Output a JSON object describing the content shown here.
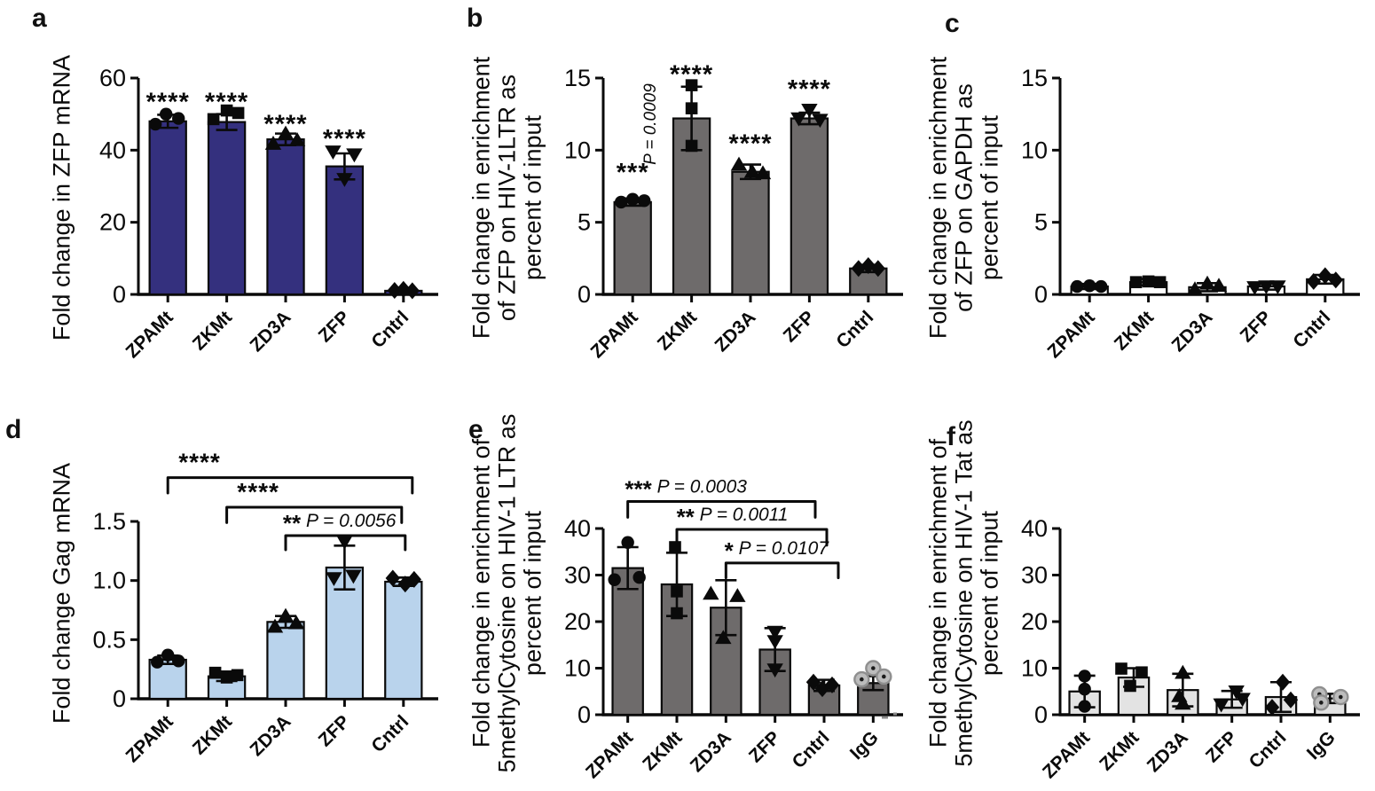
{
  "chart_data": [
    {
      "panel": "a",
      "type": "bar",
      "title": "",
      "ylabel": "Fold change in ZFP mRNA",
      "categories": [
        "ZPAMt",
        "ZKMt",
        "ZD3A",
        "ZFP",
        "Cntrl"
      ],
      "markers": [
        "circle",
        "square",
        "triangle-up",
        "triangle-down",
        "diamond"
      ],
      "values": [
        48,
        47.8,
        43,
        35.5,
        1
      ],
      "errors": [
        1.8,
        2.2,
        1.6,
        3.6,
        0.3
      ],
      "points": [
        [
          {
            "dx": -14,
            "v": 47.2
          },
          {
            "dx": -2,
            "v": 50
          },
          {
            "dx": 12,
            "v": 48.8
          }
        ],
        [
          {
            "dx": -15,
            "v": 48.6
          },
          {
            "dx": 0,
            "v": 51
          },
          {
            "dx": 13,
            "v": 50.3
          }
        ],
        [
          {
            "dx": -14,
            "v": 41.8
          },
          {
            "dx": 0,
            "v": 44.6
          },
          {
            "dx": 13,
            "v": 42.8
          }
        ],
        [
          {
            "dx": -13,
            "v": 39.6
          },
          {
            "dx": 11,
            "v": 38.8
          },
          {
            "dx": 0,
            "v": 32
          }
        ],
        [
          {
            "dx": -10,
            "v": 1.1
          },
          {
            "dx": 0,
            "v": 1.4
          },
          {
            "dx": 10,
            "v": 1
          }
        ]
      ],
      "sig": [
        {
          "text": "****",
          "v": 54
        },
        {
          "text": "****",
          "v": 54
        },
        {
          "text": "****",
          "v": 47.8
        },
        {
          "text": "****",
          "v": 43.8
        },
        null
      ],
      "brackets": [],
      "ylim": [
        0,
        60
      ],
      "yticks": [
        {
          "v": 0,
          "label": "0"
        },
        {
          "v": 20,
          "label": "20"
        },
        {
          "v": 40,
          "label": "40"
        },
        {
          "v": 60,
          "label": "60"
        }
      ],
      "bar_color": "#34307E",
      "bar_edge": "#0a0a0a"
    },
    {
      "panel": "b",
      "type": "bar",
      "title": "",
      "ylabel": "Fold change in enrichment\nof ZFP on HIV-1LTR as\npercent of input",
      "categories": [
        "ZPAMt",
        "ZKMt",
        "ZD3A",
        "ZFP",
        "Cntrl"
      ],
      "markers": [
        "circle",
        "square",
        "triangle-up",
        "triangle-down",
        "diamond"
      ],
      "values": [
        6.4,
        12.2,
        8.5,
        12.2,
        1.8
      ],
      "errors": [
        0.25,
        2.2,
        0.5,
        0.4,
        0.25
      ],
      "points": [
        [
          {
            "dx": -13,
            "v": 6.4
          },
          {
            "dx": 0,
            "v": 6.6
          },
          {
            "dx": 13,
            "v": 6.5
          }
        ],
        [
          {
            "dx": 0,
            "v": 14.5
          },
          {
            "dx": 0,
            "v": 12.9
          },
          {
            "dx": 0,
            "v": 10.3
          }
        ],
        [
          {
            "dx": -13,
            "v": 9
          },
          {
            "dx": 2,
            "v": 8.5
          },
          {
            "dx": 14,
            "v": 8.4
          }
        ],
        [
          {
            "dx": -12,
            "v": 12.2
          },
          {
            "dx": 0,
            "v": 12.8
          },
          {
            "dx": 12,
            "v": 12.1
          }
        ],
        [
          {
            "dx": -11,
            "v": 1.8
          },
          {
            "dx": 0,
            "v": 2
          },
          {
            "dx": 11,
            "v": 1.8
          }
        ]
      ],
      "sig": [
        {
          "text": "***",
          "v": 8.6
        },
        {
          "text": "****",
          "v": 15.4
        },
        {
          "text": "****",
          "v": 10.6
        },
        {
          "text": "****",
          "v": 14.4
        },
        null
      ],
      "rotated_note": {
        "cat": 0,
        "dx": 26,
        "v": 11.8,
        "text": "P = 0.0009"
      },
      "brackets": [],
      "ylim": [
        0,
        15
      ],
      "yticks": [
        {
          "v": 0,
          "label": "0"
        },
        {
          "v": 5,
          "label": "5"
        },
        {
          "v": 10,
          "label": "10"
        },
        {
          "v": 15,
          "label": "15"
        }
      ],
      "bar_color": "#6E6B6B",
      "bar_edge": "#0a0a0a"
    },
    {
      "panel": "c",
      "type": "bar",
      "title": "",
      "ylabel": "Fold change in enrichment\nof ZFP on GAPDH as\npercent of input",
      "categories": [
        "ZPAMt",
        "ZKMt",
        "ZD3A",
        "ZFP",
        "Cntrl"
      ],
      "markers": [
        "circle",
        "square",
        "triangle-up",
        "triangle-down",
        "diamond"
      ],
      "values": [
        0.55,
        0.85,
        0.5,
        0.55,
        1.05
      ],
      "errors": [
        0.18,
        0.22,
        0.28,
        0.22,
        0.3
      ],
      "points": [
        [
          {
            "dx": -14,
            "v": 0.55
          },
          {
            "dx": 0,
            "v": 0.6
          },
          {
            "dx": 13,
            "v": 0.55
          }
        ],
        [
          {
            "dx": -14,
            "v": 0.85
          },
          {
            "dx": 0,
            "v": 0.9
          },
          {
            "dx": 13,
            "v": 0.85
          }
        ],
        [
          {
            "dx": -14,
            "v": 0.35
          },
          {
            "dx": 0,
            "v": 0.75
          },
          {
            "dx": 13,
            "v": 0.6
          }
        ],
        [
          {
            "dx": -13,
            "v": 0.5
          },
          {
            "dx": 0,
            "v": 0.55
          },
          {
            "dx": 13,
            "v": 0.55
          }
        ],
        [
          {
            "dx": -13,
            "v": 0.9
          },
          {
            "dx": 0,
            "v": 1.3
          },
          {
            "dx": 12,
            "v": 1
          }
        ]
      ],
      "sig": [
        null,
        null,
        null,
        null,
        null
      ],
      "brackets": [],
      "ylim": [
        0,
        15
      ],
      "yticks": [
        {
          "v": 0,
          "label": "0"
        },
        {
          "v": 5,
          "label": "5"
        },
        {
          "v": 10,
          "label": "10"
        },
        {
          "v": 15,
          "label": "15"
        }
      ],
      "bar_color": "#FFFFFF",
      "bar_edge": "#0a0a0a"
    },
    {
      "panel": "d",
      "type": "bar",
      "title": "",
      "ylabel": "Fold change Gag mRNA",
      "categories": [
        "ZPAMt",
        "ZKMt",
        "ZD3A",
        "ZFP",
        "Cntrl"
      ],
      "markers": [
        "circle",
        "square",
        "triangle-up",
        "triangle-down",
        "diamond"
      ],
      "values": [
        0.33,
        0.19,
        0.65,
        1.11,
        0.99
      ],
      "errors": [
        0.035,
        0.04,
        0.05,
        0.185,
        0.035
      ],
      "points": [
        [
          {
            "dx": -12,
            "v": 0.31
          },
          {
            "dx": 0,
            "v": 0.37
          },
          {
            "dx": 12,
            "v": 0.32
          }
        ],
        [
          {
            "dx": -13,
            "v": 0.22
          },
          {
            "dx": 0,
            "v": 0.18
          },
          {
            "dx": 12,
            "v": 0.2
          }
        ],
        [
          {
            "dx": -12,
            "v": 0.61
          },
          {
            "dx": 0,
            "v": 0.7
          },
          {
            "dx": 12,
            "v": 0.64
          }
        ],
        [
          {
            "dx": -12,
            "v": 1.02
          },
          {
            "dx": 10,
            "v": 1.04
          },
          {
            "dx": 0,
            "v": 1.33
          }
        ],
        [
          {
            "dx": -12,
            "v": 1.02
          },
          {
            "dx": 2,
            "v": 0.97
          },
          {
            "dx": 12,
            "v": 1.01
          }
        ]
      ],
      "sig": [
        null,
        null,
        null,
        null,
        null
      ],
      "brackets": [
        {
          "from": 0,
          "to": 4,
          "to_dx": 10,
          "v": 1.87,
          "drop": 0.13,
          "stars": "****",
          "p": "",
          "label_pos": 0.13
        },
        {
          "from": 1,
          "to": 4,
          "to_dx": -2,
          "v": 1.62,
          "drop": 0.13,
          "stars": "****",
          "p": "",
          "label_pos": 0.18
        },
        {
          "from": 2,
          "to": 4,
          "to_dx": 2,
          "v": 1.38,
          "drop": 0.12,
          "stars": "**",
          "p": "P = 0.0056",
          "label_pos": 0.45
        }
      ],
      "ylim": [
        0,
        1.5
      ],
      "yticks": [
        {
          "v": 0,
          "label": "0"
        },
        {
          "v": 0.5,
          "label": "0.5"
        },
        {
          "v": 1,
          "label": "1.0"
        },
        {
          "v": 1.5,
          "label": "1.5"
        }
      ],
      "bar_color": "#B9D3EC",
      "bar_edge": "#0a0a0a"
    },
    {
      "panel": "e",
      "type": "bar",
      "title": "",
      "ylabel": "Fold change in enrichment of\n5methylCytosine on HIV-1 LTR as\npercent of input",
      "categories": [
        "ZPAMt",
        "ZKMt",
        "ZD3A",
        "ZFP",
        "Cntrl",
        "IgG"
      ],
      "markers": [
        "circle",
        "square",
        "triangle-up",
        "triangle-down",
        "diamond",
        "circle-gray"
      ],
      "values": [
        31.5,
        28,
        23,
        14,
        6.3,
        6.8
      ],
      "errors": [
        4.5,
        6.8,
        5.9,
        4.6,
        1.2,
        1.5
      ],
      "points": [
        [
          {
            "dx": -15,
            "v": 29
          },
          {
            "dx": 0,
            "v": 37
          },
          {
            "dx": 13,
            "v": 29.5
          }
        ],
        [
          {
            "dx": -2,
            "v": 36
          },
          {
            "dx": 0,
            "v": 26.5
          },
          {
            "dx": 0,
            "v": 21.8
          }
        ],
        [
          {
            "dx": -17,
            "v": 26
          },
          {
            "dx": 13,
            "v": 25.5
          },
          {
            "dx": -3,
            "v": 16.5
          }
        ],
        [
          {
            "dx": 0,
            "v": 17.8
          },
          {
            "dx": 0,
            "v": 15.8
          },
          {
            "dx": 0,
            "v": 9.7
          }
        ],
        [
          {
            "dx": -12,
            "v": 7
          },
          {
            "dx": 9,
            "v": 6.4
          },
          {
            "dx": -2,
            "v": 5.6
          }
        ],
        [
          {
            "dx": 0,
            "v": 10
          },
          {
            "dx": -13,
            "v": 7.6
          },
          {
            "dx": 12,
            "v": 8.2
          }
        ]
      ],
      "sig": [
        null,
        null,
        null,
        null,
        null,
        null
      ],
      "brackets": [
        {
          "from": 0,
          "to": 4,
          "to_dx": -10,
          "v": 45.8,
          "drop": 3.4,
          "stars": "***",
          "p": "P = 0.0003",
          "label_pos": 0.31
        },
        {
          "from": 1,
          "to": 4,
          "to_dx": 3,
          "v": 39.8,
          "drop": 3.4,
          "stars": "**",
          "p": "P = 0.0011",
          "label_pos": 0.37
        },
        {
          "from": 2,
          "to": 4,
          "to_dx": 16,
          "v": 32.6,
          "drop": 3.2,
          "stars": "*",
          "p": "P = 0.0107",
          "label_pos": 0.45
        }
      ],
      "end_dashes": true,
      "ylim": [
        0,
        40
      ],
      "yticks": [
        {
          "v": 0,
          "label": "0"
        },
        {
          "v": 10,
          "label": "10"
        },
        {
          "v": 20,
          "label": "20"
        },
        {
          "v": 30,
          "label": "30"
        },
        {
          "v": 40,
          "label": "40"
        }
      ],
      "bar_color": "#6E6B6B",
      "bar_edge": "#0a0a0a"
    },
    {
      "panel": "f",
      "type": "bar",
      "title": "",
      "ylabel": "Fold change in enrichment of\n5methylCytosine on HIV-1 Tat as\npercent of input",
      "categories": [
        "ZPAMt",
        "ZKMt",
        "ZD3A",
        "ZFP",
        "Cntrl",
        "IgG"
      ],
      "markers": [
        "circle",
        "square",
        "triangle-up",
        "triangle-down",
        "diamond",
        "circle-gray"
      ],
      "values": [
        5,
        8,
        5.3,
        3.3,
        3.8,
        3.5
      ],
      "errors": [
        3.4,
        2,
        3.5,
        1.8,
        3.2,
        1
      ],
      "points": [
        [
          {
            "dx": 0,
            "v": 8.3
          },
          {
            "dx": 0,
            "v": 5.5
          },
          {
            "dx": 0,
            "v": 1.8
          }
        ],
        [
          {
            "dx": -14,
            "v": 9.9
          },
          {
            "dx": 9,
            "v": 9.1
          },
          {
            "dx": -4,
            "v": 6.2
          }
        ],
        [
          {
            "dx": 0,
            "v": 9
          },
          {
            "dx": -4,
            "v": 4
          },
          {
            "dx": 0,
            "v": 2.4
          }
        ],
        [
          {
            "dx": 5,
            "v": 5
          },
          {
            "dx": 12,
            "v": 3.4
          },
          {
            "dx": -12,
            "v": 2.2
          }
        ],
        [
          {
            "dx": 2,
            "v": 7
          },
          {
            "dx": 11,
            "v": 3.2
          },
          {
            "dx": -10,
            "v": 1.6
          }
        ],
        [
          {
            "dx": -12,
            "v": 4.4
          },
          {
            "dx": 12,
            "v": 3.8
          },
          {
            "dx": -10,
            "v": 2.6
          }
        ]
      ],
      "sig": [
        null,
        null,
        null,
        null,
        null,
        null
      ],
      "brackets": [],
      "ylim": [
        0,
        40
      ],
      "yticks": [
        {
          "v": 0,
          "label": "0"
        },
        {
          "v": 10,
          "label": "10"
        },
        {
          "v": 20,
          "label": "20"
        },
        {
          "v": 30,
          "label": "30"
        },
        {
          "v": 40,
          "label": "40"
        }
      ],
      "bar_color": "#E3E3E3",
      "bar_edge": "#0a0a0a"
    }
  ]
}
